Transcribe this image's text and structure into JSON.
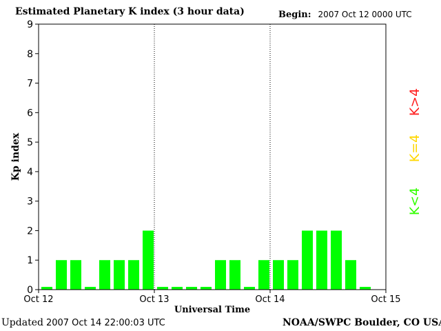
{
  "header": {
    "title": "Estimated Planetary K index (3 hour data)",
    "begin_label": "Begin:",
    "begin_value": "2007 Oct 12 0000 UTC"
  },
  "footer": {
    "updated_label": "Updated",
    "updated_value": "2007 Oct 14 22:00:03 UTC",
    "source": "NOAA/SWPC Boulder, CO USA"
  },
  "legend": [
    {
      "label": "K>4",
      "color": "#ff2020"
    },
    {
      "label": "K=4",
      "color": "#ffd700"
    },
    {
      "label": "K<4",
      "color": "#33ff00"
    }
  ],
  "chart_data": {
    "type": "bar",
    "title": "Estimated Planetary K index (3 hour data)",
    "xlabel": "Universal Time",
    "ylabel": "Kp index",
    "ylim": [
      0,
      9
    ],
    "yticks": [
      "0",
      "1",
      "2",
      "3",
      "4",
      "5",
      "6",
      "7",
      "8",
      "9"
    ],
    "xticks": [
      "Oct 12",
      "Oct 13",
      "Oct 14",
      "Oct 15"
    ],
    "day_dividers": [
      "Oct 13",
      "Oct 14"
    ],
    "bar_color": "#00ff00",
    "series": [
      {
        "values": [
          0,
          1,
          1,
          0,
          1,
          1,
          1,
          2,
          0,
          0,
          0,
          0,
          1,
          1,
          0,
          1,
          1,
          1,
          2,
          2,
          2,
          1,
          0
        ]
      }
    ]
  }
}
